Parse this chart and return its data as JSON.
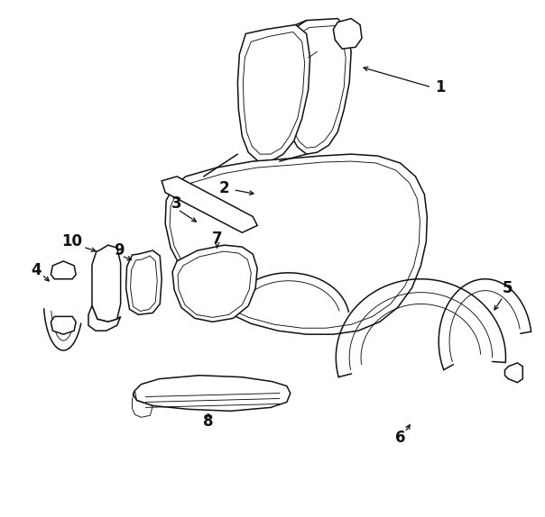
{
  "bg": "#ffffff",
  "lc": "#111111",
  "lw": 1.1,
  "tlw": 0.65
}
